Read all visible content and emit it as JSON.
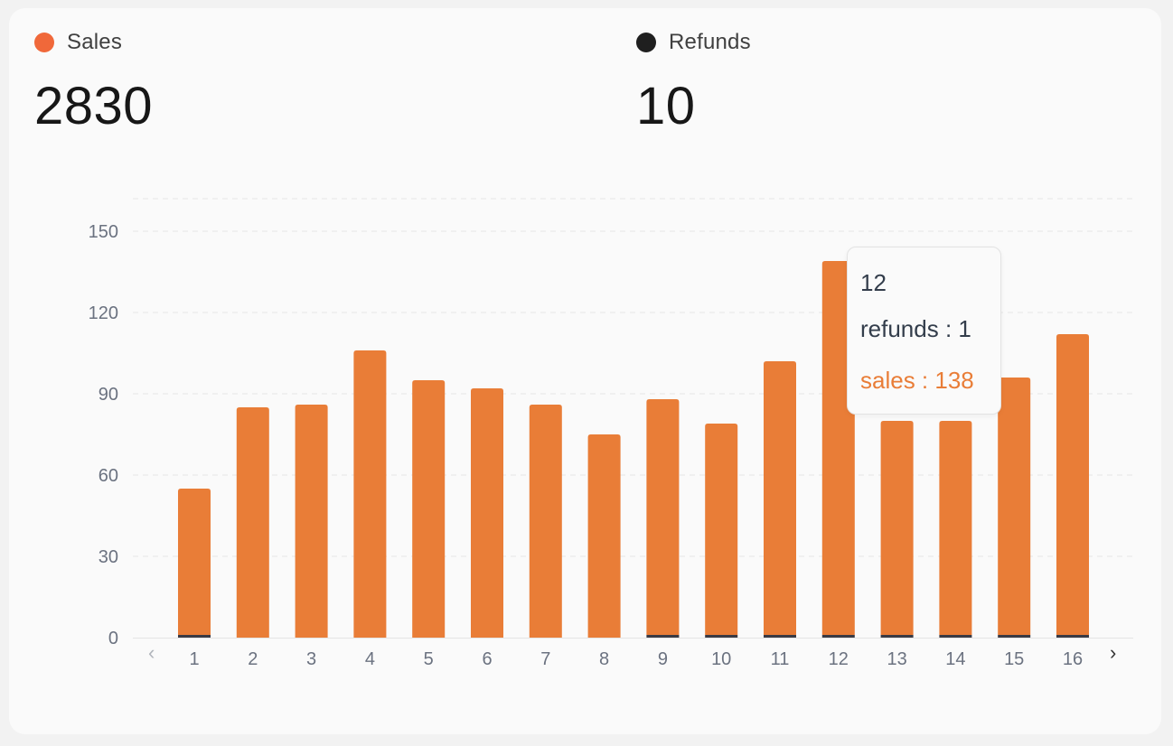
{
  "summary": {
    "sales": {
      "label": "Sales",
      "value": "2830",
      "color": "#F0683A"
    },
    "refunds": {
      "label": "Refunds",
      "value": "10",
      "color": "#1F1F1F"
    }
  },
  "tooltip": {
    "title": "12",
    "refunds_text": "refunds : 1",
    "sales_text": "sales : 138"
  },
  "pager": {
    "prev_icon": "chevron-left-icon",
    "next_icon": "chevron-right-icon"
  },
  "colors": {
    "sales_bar": "#E97D37",
    "refunds_bar": "#3A3A44",
    "grid": "#E5E5E5",
    "axis_text": "#6B7280",
    "tooltip_sales_text": "#E97D37",
    "tooltip_refunds_text": "#333D4B"
  },
  "chart_data": {
    "type": "bar",
    "stacked": true,
    "categories": [
      "1",
      "2",
      "3",
      "4",
      "5",
      "6",
      "7",
      "8",
      "9",
      "10",
      "11",
      "12",
      "13",
      "14",
      "15",
      "16"
    ],
    "series": [
      {
        "name": "refunds",
        "values": [
          1,
          0,
          0,
          0,
          0,
          0,
          0,
          0,
          1,
          1,
          1,
          1,
          1,
          1,
          1,
          1
        ]
      },
      {
        "name": "sales",
        "values": [
          54,
          85,
          86,
          106,
          95,
          92,
          86,
          75,
          87,
          78,
          101,
          138,
          79,
          79,
          95,
          111
        ]
      }
    ],
    "yticks": [
      0,
      30,
      60,
      90,
      120,
      150
    ],
    "ylim": [
      0,
      162
    ],
    "grid": true,
    "grid_style": "dashed-horizontal"
  }
}
